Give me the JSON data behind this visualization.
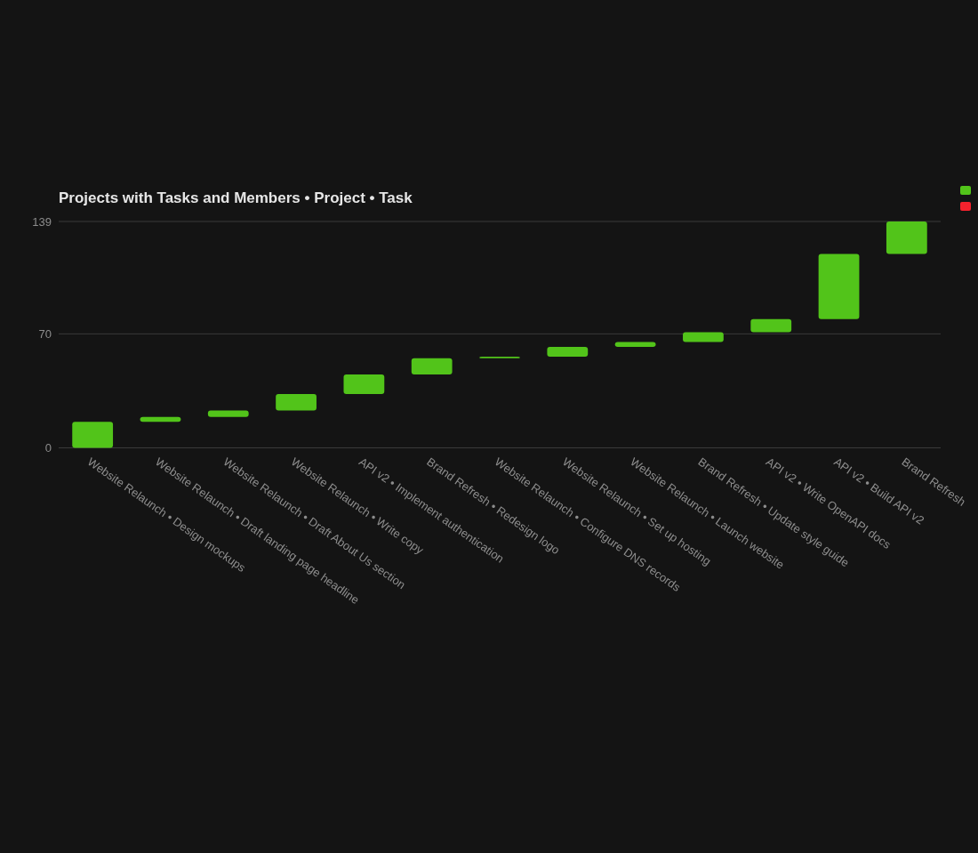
{
  "chart_data": {
    "type": "bar",
    "title": "Projects with Tasks and Members • Project • Task",
    "categories": [
      "Website Relaunch • Design mockups",
      "Website Relaunch • Draft landing page headline",
      "Website Relaunch • Draft About Us section",
      "Website Relaunch • Write copy",
      "API v2 • Implement authentication",
      "Brand Refresh • Redesign logo",
      "Website Relaunch • Configure DNS records",
      "Website Relaunch • Set up hosting",
      "Website Relaunch • Launch website",
      "Brand Refresh • Update style guide",
      "API v2 • Write OpenAPI docs",
      "API v2 • Build API v2",
      "Brand Refresh"
    ],
    "values": [
      16,
      3,
      4,
      10,
      12,
      10,
      1,
      6,
      3,
      6,
      8,
      40,
      20
    ],
    "base": [
      0,
      16,
      19,
      23,
      33,
      45,
      55,
      56,
      62,
      65,
      71,
      79,
      119
    ],
    "color": "#52c41a",
    "ylim": [
      0,
      139
    ],
    "yticks": [
      0,
      70,
      139
    ],
    "grid": "y"
  }
}
